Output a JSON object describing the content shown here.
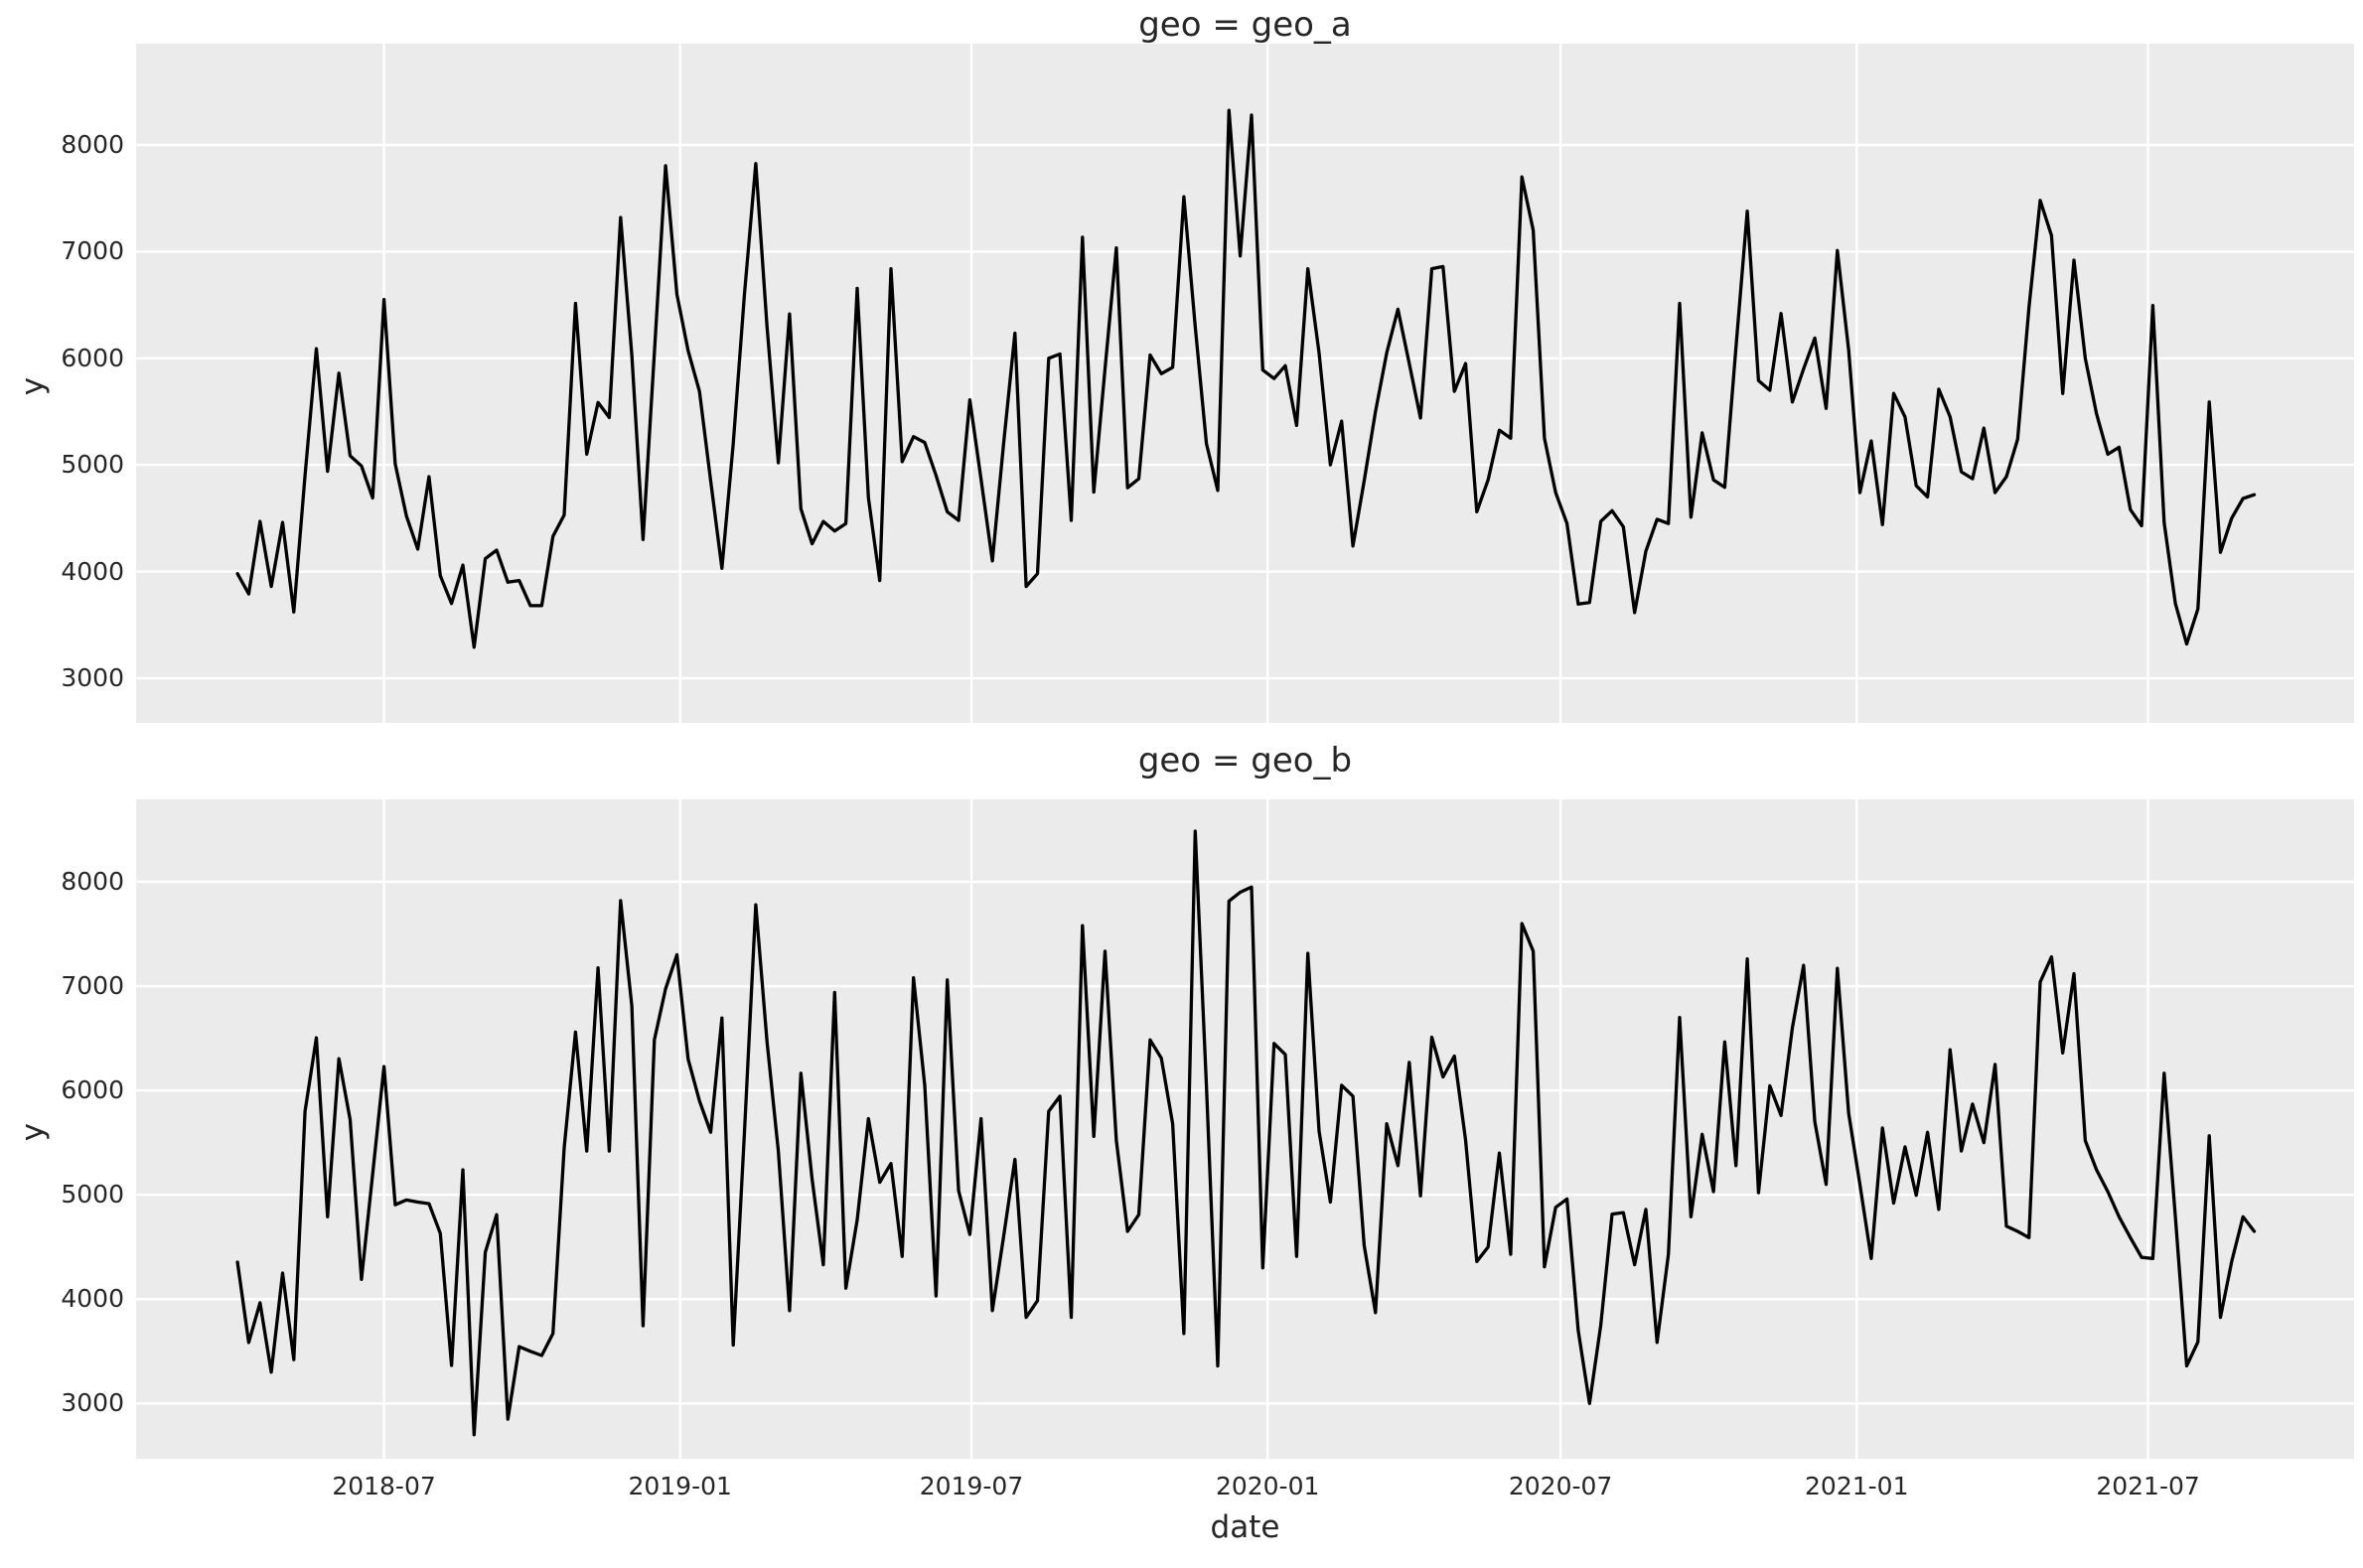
{
  "figure": {
    "xlabel": "date",
    "ylabel": "y",
    "background_color": "#ffffff",
    "panel_color": "#ebebeb",
    "grid_color": "#ffffff",
    "text_color": "#262626",
    "line_color": "#000000"
  },
  "chart_data": [
    {
      "type": "line",
      "title": "geo = geo_a",
      "xlabel": "date",
      "ylabel": "y",
      "legend": "none",
      "grid": true,
      "line_color": "#000000",
      "x_start_date": "2018-04-01",
      "x_step_days": 7,
      "x_axis_range": [
        "2018-01-28",
        "2021-11-06"
      ],
      "ylim": [
        2580,
        8950
      ],
      "yticks": [
        3000,
        4000,
        5000,
        6000,
        7000,
        8000
      ],
      "xticks": [
        {
          "label": "2018-07",
          "date": "2018-07-01"
        },
        {
          "label": "2019-01",
          "date": "2019-01-01"
        },
        {
          "label": "2019-07",
          "date": "2019-07-01"
        },
        {
          "label": "2020-01",
          "date": "2020-01-01"
        },
        {
          "label": "2020-07",
          "date": "2020-07-01"
        },
        {
          "label": "2021-01",
          "date": "2021-01-01"
        },
        {
          "label": "2021-07",
          "date": "2021-07-01"
        }
      ],
      "values": [
        3980,
        3790,
        4470,
        3860,
        4460,
        3620,
        4900,
        6090,
        4940,
        5860,
        5085,
        4990,
        4690,
        6550,
        5010,
        4520,
        4210,
        4890,
        3960,
        3700,
        4060,
        3290,
        4120,
        4200,
        3900,
        3915,
        3680,
        3680,
        4330,
        4530,
        6515,
        5100,
        5585,
        5445,
        7320,
        6030,
        4300,
        6050,
        7805,
        6600,
        6070,
        5690,
        4850,
        4030,
        5200,
        6600,
        7825,
        6300,
        5020,
        6415,
        4590,
        4260,
        4470,
        4380,
        4450,
        6655,
        4690,
        3915,
        6840,
        5030,
        5265,
        5210,
        4900,
        4560,
        4480,
        5610,
        4865,
        4100,
        5200,
        6235,
        3860,
        3980,
        6000,
        6040,
        4480,
        7135,
        4745,
        5900,
        7035,
        4785,
        4870,
        6030,
        5855,
        5915,
        7515,
        6300,
        5200,
        4760,
        8325,
        6960,
        8280,
        5890,
        5810,
        5930,
        5370,
        6840,
        6050,
        5000,
        5410,
        4240,
        4850,
        5500,
        6050,
        6460,
        5950,
        5440,
        6840,
        6860,
        5690,
        5950,
        4560,
        4860,
        5325,
        5250,
        7700,
        7200,
        5250,
        4740,
        4450,
        3695,
        3710,
        4470,
        4570,
        4420,
        3615,
        4190,
        4490,
        4450,
        6515,
        4510,
        5300,
        4860,
        4790,
        6100,
        7380,
        5790,
        5700,
        6420,
        5590,
        5900,
        6190,
        5530,
        7010,
        6075,
        4740,
        5225,
        4440,
        5670,
        5450,
        4805,
        4700,
        5710,
        5450,
        4935,
        4870,
        5345,
        4740,
        4890,
        5240,
        6475,
        7480,
        7150,
        5670,
        6920,
        6000,
        5480,
        5100,
        5165,
        4580,
        4430,
        6495,
        4460,
        3700,
        3320,
        3650,
        5590,
        4180,
        4500,
        4685,
        4720
      ]
    },
    {
      "type": "line",
      "title": "geo = geo_b",
      "xlabel": "date",
      "ylabel": "y",
      "legend": "none",
      "grid": true,
      "line_color": "#000000",
      "x_start_date": "2018-04-01",
      "x_step_days": 7,
      "x_axis_range": [
        "2018-01-28",
        "2021-11-06"
      ],
      "ylim": [
        2470,
        8790
      ],
      "yticks": [
        3000,
        4000,
        5000,
        6000,
        7000,
        8000
      ],
      "xticks": [
        {
          "label": "2018-07",
          "date": "2018-07-01"
        },
        {
          "label": "2019-01",
          "date": "2019-01-01"
        },
        {
          "label": "2019-07",
          "date": "2019-07-01"
        },
        {
          "label": "2020-01",
          "date": "2020-01-01"
        },
        {
          "label": "2020-07",
          "date": "2020-07-01"
        },
        {
          "label": "2021-01",
          "date": "2021-01-01"
        },
        {
          "label": "2021-07",
          "date": "2021-07-01"
        }
      ],
      "values": [
        4355,
        3585,
        3965,
        3300,
        4250,
        3420,
        5800,
        6505,
        4790,
        6305,
        5720,
        4190,
        5200,
        6230,
        4905,
        4950,
        4930,
        4915,
        4630,
        3365,
        5240,
        2700,
        4450,
        4810,
        2850,
        3545,
        3500,
        3460,
        3670,
        5450,
        6560,
        5420,
        7175,
        5420,
        7820,
        6810,
        3745,
        6485,
        6975,
        7300,
        6300,
        5900,
        5600,
        6695,
        3560,
        5600,
        7780,
        6470,
        5420,
        3890,
        6165,
        5150,
        4330,
        6940,
        4105,
        4760,
        5730,
        5120,
        5300,
        4410,
        7080,
        6050,
        4030,
        7060,
        5040,
        4620,
        5730,
        3890,
        4600,
        5340,
        3825,
        3985,
        5800,
        5945,
        3825,
        7580,
        5560,
        7335,
        5520,
        4650,
        4810,
        6485,
        6310,
        5680,
        3670,
        8485,
        6045,
        3360,
        7815,
        7900,
        7950,
        4300,
        6450,
        6345,
        4410,
        7315,
        5610,
        4930,
        6050,
        5945,
        4515,
        3870,
        5680,
        5280,
        6270,
        4990,
        6510,
        6130,
        6330,
        5525,
        4360,
        4500,
        5400,
        4430,
        7600,
        7335,
        4310,
        4880,
        4960,
        3700,
        3000,
        3750,
        4815,
        4830,
        4330,
        4860,
        3585,
        4430,
        6700,
        4790,
        5580,
        5030,
        6465,
        5280,
        7260,
        5020,
        6045,
        5760,
        6600,
        7200,
        5700,
        5100,
        7170,
        5780,
        5100,
        4390,
        5640,
        4920,
        5460,
        4995,
        5600,
        4860,
        6390,
        5420,
        5870,
        5500,
        6250,
        4700,
        4650,
        4590,
        7040,
        7280,
        6360,
        7120,
        5520,
        5240,
        5030,
        4790,
        4590,
        4400,
        4390,
        6165,
        4790,
        3360,
        3590,
        5565,
        3825,
        4360,
        4790,
        4650
      ]
    }
  ]
}
